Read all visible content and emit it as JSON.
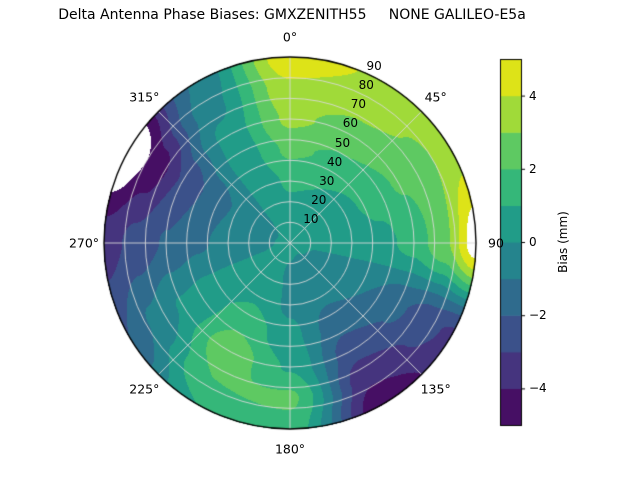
{
  "chart_data": {
    "type": "polar_contour",
    "title": "Delta Antenna Phase Biases: GMXZENITH55     NONE GALILEO-E5a",
    "units": "mm",
    "orientation": {
      "zero_location": "N",
      "direction": "clockwise"
    },
    "angular_ticks": [
      {
        "angle": 0,
        "label": "0°"
      },
      {
        "angle": 45,
        "label": "45°"
      },
      {
        "angle": 90,
        "label": "90"
      },
      {
        "angle": 135,
        "label": "135°"
      },
      {
        "angle": 180,
        "label": "180°"
      },
      {
        "angle": 225,
        "label": "225°"
      },
      {
        "angle": 270,
        "label": "270°"
      },
      {
        "angle": 315,
        "label": "315°"
      }
    ],
    "radial_ticks": [
      {
        "value": 10,
        "label": "10"
      },
      {
        "value": 20,
        "label": "20"
      },
      {
        "value": 30,
        "label": "30"
      },
      {
        "value": 40,
        "label": "40"
      },
      {
        "value": 50,
        "label": "50"
      },
      {
        "value": 60,
        "label": "60"
      },
      {
        "value": 70,
        "label": "70"
      },
      {
        "value": 80,
        "label": "80"
      },
      {
        "value": 90,
        "label": "90"
      }
    ],
    "grid": {
      "azimuth_deg": [
        0,
        30,
        60,
        90,
        120,
        150,
        180,
        210,
        240,
        270,
        300,
        330,
        360
      ],
      "zenith_deg": [
        0,
        15,
        30,
        45,
        60,
        75,
        90
      ],
      "values": [
        [
          0.2,
          0.2,
          0.2,
          0.2,
          0.2,
          0.2,
          0.2,
          0.2,
          0.2,
          0.2,
          0.2,
          0.2,
          0.2
        ],
        [
          0.5,
          0.4,
          0.3,
          0.1,
          -0.1,
          -0.3,
          -0.1,
          0.2,
          0.1,
          -0.2,
          -0.3,
          0.1,
          0.5
        ],
        [
          1.2,
          1.0,
          0.7,
          0.3,
          -0.4,
          -0.8,
          -0.2,
          0.8,
          0.2,
          -0.6,
          -0.9,
          0.2,
          1.2
        ],
        [
          2.2,
          1.8,
          1.4,
          0.7,
          -1.0,
          -1.6,
          0.3,
          1.8,
          0.3,
          -1.2,
          -1.8,
          0.4,
          2.2
        ],
        [
          3.2,
          2.6,
          2.1,
          1.4,
          -1.8,
          -2.6,
          0.9,
          2.7,
          0.1,
          -1.9,
          -2.9,
          0.3,
          3.2
        ],
        [
          3.8,
          3.3,
          2.8,
          2.8,
          -2.6,
          -3.8,
          2.2,
          2.0,
          -0.8,
          -2.7,
          -4.6,
          -0.3,
          3.8
        ],
        [
          4.8,
          3.8,
          3.6,
          5.6,
          -3.2,
          -4.8,
          1.6,
          1.0,
          -2.0,
          -3.5,
          -6.2,
          -0.8,
          4.8
        ]
      ]
    },
    "colorbar": {
      "label": "Bias (mm)",
      "vmin": -5,
      "vmax": 5,
      "level_step": 1,
      "ticks": [
        -4,
        -2,
        0,
        2,
        4
      ],
      "tick_labels": [
        "−4",
        "−2",
        "0",
        "2",
        "4"
      ],
      "band_colors": [
        "#460f64",
        "#45347e",
        "#3b518a",
        "#2f6b8d",
        "#25848d",
        "#219c88",
        "#35b779",
        "#5ec962",
        "#a0da39",
        "#dde318"
      ],
      "out_of_range_color": "#ffffff"
    },
    "style": {
      "grid_color": "#d9d9d9",
      "outline_color": "#000000",
      "background": "#ffffff"
    }
  }
}
